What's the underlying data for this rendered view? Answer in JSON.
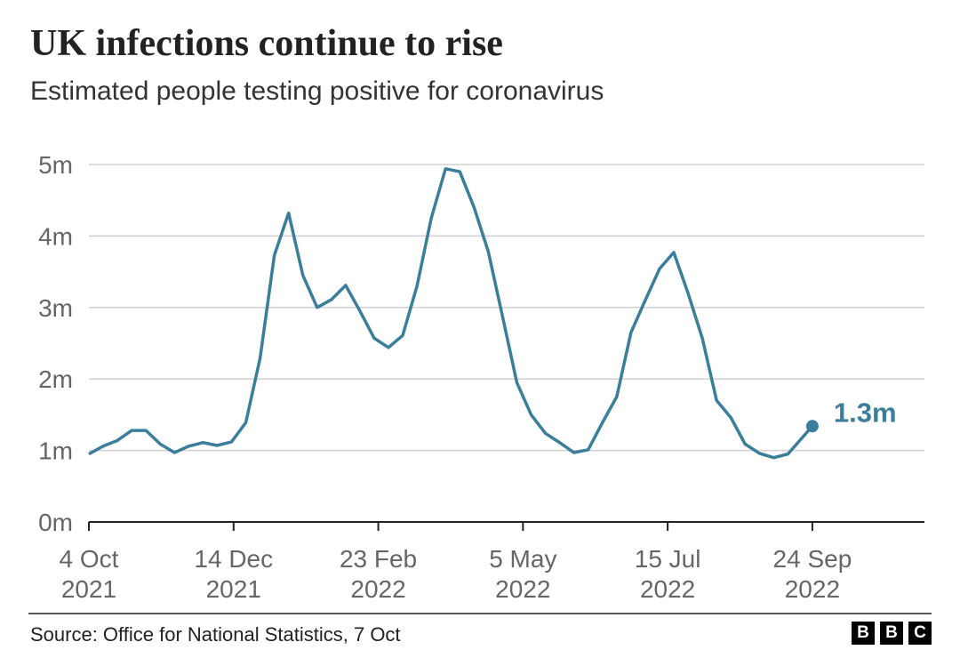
{
  "chart_data": {
    "type": "line",
    "title": "UK infections continue to rise",
    "subtitle": "Estimated people testing positive for coronavirus",
    "source": "Source: Office for National Statistics, 7 Oct",
    "logo": [
      "B",
      "B",
      "C"
    ],
    "x": [
      "2021-10-04",
      "2021-10-11",
      "2021-10-18",
      "2021-10-25",
      "2021-11-01",
      "2021-11-08",
      "2021-11-15",
      "2021-11-22",
      "2021-11-29",
      "2021-12-06",
      "2021-12-13",
      "2021-12-20",
      "2021-12-27",
      "2022-01-03",
      "2022-01-10",
      "2022-01-17",
      "2022-01-24",
      "2022-01-31",
      "2022-02-07",
      "2022-02-14",
      "2022-02-21",
      "2022-02-28",
      "2022-03-07",
      "2022-03-14",
      "2022-03-21",
      "2022-03-28",
      "2022-04-04",
      "2022-04-11",
      "2022-04-18",
      "2022-04-25",
      "2022-05-02",
      "2022-05-09",
      "2022-05-16",
      "2022-05-23",
      "2022-05-30",
      "2022-06-06",
      "2022-06-13",
      "2022-06-20",
      "2022-06-27",
      "2022-07-04",
      "2022-07-11",
      "2022-07-18",
      "2022-07-25",
      "2022-08-01",
      "2022-08-08",
      "2022-08-15",
      "2022-08-22",
      "2022-08-29",
      "2022-09-05",
      "2022-09-12",
      "2022-09-24"
    ],
    "series": [
      {
        "name": "Estimated people testing positive",
        "color": "#3b7e9c",
        "values": [
          0.95,
          1.06,
          1.14,
          1.28,
          1.28,
          1.09,
          0.97,
          1.06,
          1.11,
          1.07,
          1.12,
          1.39,
          2.29,
          3.73,
          4.32,
          3.45,
          3.0,
          3.11,
          3.31,
          2.95,
          2.57,
          2.44,
          2.61,
          3.3,
          4.25,
          4.94,
          4.9,
          4.4,
          3.78,
          2.87,
          1.95,
          1.5,
          1.24,
          1.11,
          0.97,
          1.01,
          1.39,
          1.75,
          2.65,
          3.1,
          3.54,
          3.77,
          3.2,
          2.57,
          1.7,
          1.46,
          1.09,
          0.96,
          0.9,
          0.95,
          1.34
        ],
        "value_labels": [
          null,
          null,
          null,
          null,
          null,
          null,
          null,
          null,
          null,
          null,
          null,
          null,
          null,
          null,
          null,
          null,
          null,
          null,
          null,
          null,
          null,
          null,
          null,
          null,
          null,
          null,
          null,
          null,
          null,
          null,
          null,
          null,
          null,
          null,
          null,
          null,
          null,
          null,
          null,
          null,
          null,
          null,
          null,
          null,
          null,
          null,
          null,
          null,
          null,
          null,
          "1.3m"
        ]
      }
    ],
    "xlim": [
      "2021-10-04",
      "2022-11-18"
    ],
    "xticks": [
      {
        "value": "2021-10-04",
        "label": "4 Oct 2021"
      },
      {
        "value": "2021-12-14",
        "label": "14 Dec 2021"
      },
      {
        "value": "2022-02-23",
        "label": "23 Feb 2022"
      },
      {
        "value": "2022-05-05",
        "label": "5 May 2022"
      },
      {
        "value": "2022-07-15",
        "label": "15 Jul 2022"
      },
      {
        "value": "2022-09-24",
        "label": "24 Sep 2022"
      }
    ],
    "ylim": [
      0,
      5
    ],
    "yticks": [
      {
        "value": 0,
        "label": "0m"
      },
      {
        "value": 1,
        "label": "1m"
      },
      {
        "value": 2,
        "label": "2m"
      },
      {
        "value": 3,
        "label": "3m"
      },
      {
        "value": 4,
        "label": "4m"
      },
      {
        "value": 5,
        "label": "5m"
      }
    ],
    "grid": true
  }
}
